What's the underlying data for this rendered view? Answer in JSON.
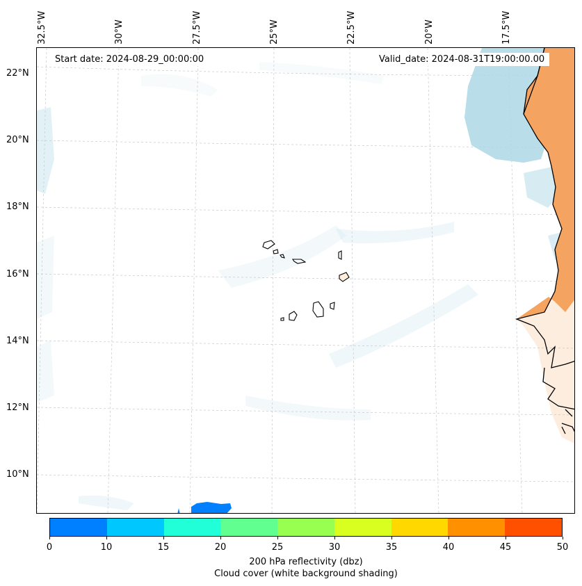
{
  "header": {
    "start_date": "Start date: 2024-08-29_00:00:00",
    "valid_date": "Valid_date: 2024-08-31T19:00:00.00"
  },
  "map": {
    "lon_labels": [
      "32.5°W",
      "30°W",
      "27.5°W",
      "25°W",
      "22.5°W",
      "20°W",
      "17.5°W"
    ],
    "lat_labels": [
      "22°N",
      "20°N",
      "18°N",
      "16°N",
      "14°N",
      "12°N",
      "10°N"
    ],
    "colors": {
      "cloud_shading": "#add8e6",
      "land_shading": "#f4a460",
      "reflectivity_patch": "#0080ff",
      "coastline": "#000000",
      "gridline": "#c8c8c8"
    }
  },
  "colorbar": {
    "ticks": [
      "0",
      "10",
      "15",
      "20",
      "25",
      "30",
      "35",
      "40",
      "45",
      "50"
    ],
    "colors": [
      "#0080ff",
      "#00c8ff",
      "#20ffd8",
      "#60ff90",
      "#98ff50",
      "#d8ff20",
      "#ffd800",
      "#ff9000",
      "#ff5000"
    ],
    "label_line1": "200 hPa reflectivity (dbz)",
    "label_line2": "Cloud cover (white background shading)"
  }
}
